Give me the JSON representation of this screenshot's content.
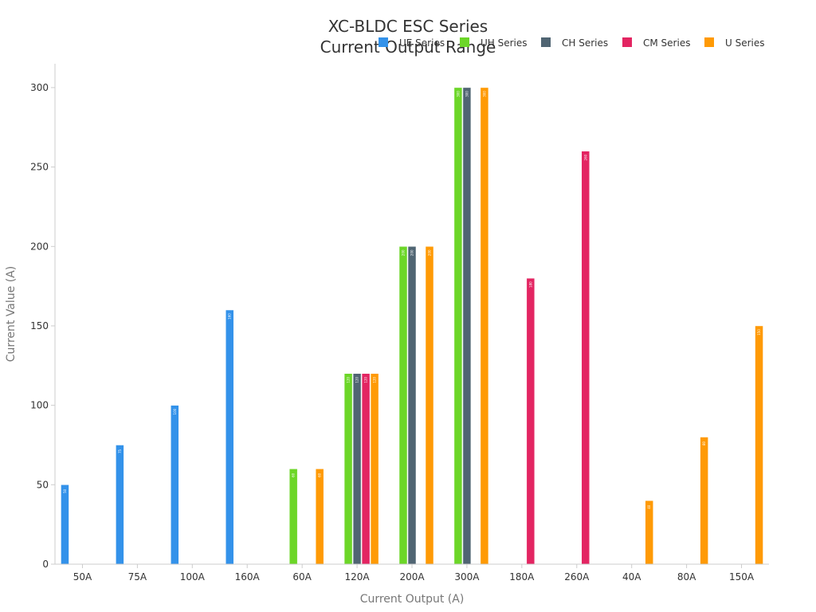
{
  "chart_data": {
    "type": "bar",
    "title": [
      "XC-BLDC ESC Series",
      "Current Output Range"
    ],
    "xlabel": "Current Output (A)",
    "ylabel": "Current Value (A)",
    "ylim": [
      0,
      315
    ],
    "yticks": [
      0,
      50,
      100,
      150,
      200,
      250,
      300
    ],
    "grid": false,
    "legend_position": "top-right",
    "categories": [
      "50A",
      "75A",
      "100A",
      "160A",
      "60A",
      "120A",
      "200A",
      "300A",
      "180A",
      "260A",
      "40A",
      "80A",
      "150A"
    ],
    "series": [
      {
        "name": "UE Series",
        "color": "#3392ea",
        "values": [
          50,
          75,
          100,
          160,
          null,
          null,
          null,
          null,
          null,
          null,
          null,
          null,
          null
        ]
      },
      {
        "name": "UH Series",
        "color": "#6cd628",
        "values": [
          null,
          null,
          null,
          null,
          60,
          120,
          200,
          300,
          null,
          null,
          null,
          null,
          null
        ]
      },
      {
        "name": "CH Series",
        "color": "#506573",
        "values": [
          null,
          null,
          null,
          null,
          null,
          120,
          200,
          300,
          null,
          null,
          null,
          null,
          null
        ]
      },
      {
        "name": "CM Series",
        "color": "#e32562",
        "values": [
          null,
          null,
          null,
          null,
          null,
          120,
          null,
          null,
          180,
          260,
          null,
          null,
          null
        ]
      },
      {
        "name": "U Series",
        "color": "#ff9a05",
        "values": [
          null,
          null,
          null,
          null,
          60,
          120,
          200,
          300,
          null,
          null,
          40,
          80,
          150
        ]
      }
    ]
  }
}
